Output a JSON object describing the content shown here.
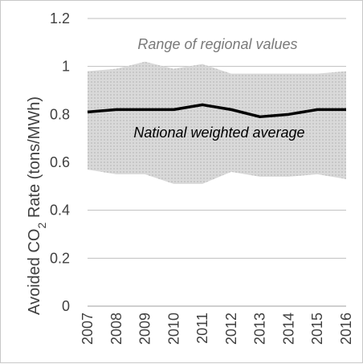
{
  "chart_data": {
    "type": "area",
    "title": "",
    "xlabel": "",
    "ylabel": {
      "prefix": "Avoided CO",
      "subscript": "2",
      "suffix": " Rate (tons/MWh)"
    },
    "x": [
      "2007",
      "2008",
      "2009",
      "2010",
      "2011",
      "2012",
      "2013",
      "2014",
      "2015",
      "2016"
    ],
    "ylim": [
      0,
      1.2
    ],
    "yticks": [
      "0",
      "0.2",
      "0.4",
      "0.6",
      "0.8",
      "1",
      "1.2"
    ],
    "ytick_values": [
      0,
      0.2,
      0.4,
      0.6,
      0.8,
      1.0,
      1.2
    ],
    "grid": true,
    "series": [
      {
        "name": "Range of regional values",
        "kind": "band",
        "lower": [
          0.57,
          0.55,
          0.55,
          0.51,
          0.51,
          0.56,
          0.54,
          0.54,
          0.55,
          0.53
        ],
        "upper": [
          0.98,
          0.99,
          1.02,
          0.99,
          1.01,
          0.97,
          0.97,
          0.97,
          0.97,
          0.98
        ],
        "color": "#d9d9d9"
      },
      {
        "name": "National weighted average",
        "kind": "line",
        "values": [
          0.81,
          0.82,
          0.82,
          0.82,
          0.84,
          0.82,
          0.79,
          0.8,
          0.82,
          0.82
        ],
        "color": "#000000"
      }
    ],
    "annotations": {
      "range": "Range of regional values",
      "average": "National weighted average"
    },
    "colors": {
      "band_fill": "#d9d9d9",
      "band_hatch": "#9a9a9a",
      "grid": "#bfbfbf",
      "axis": "#bfbfbf",
      "text": "#404040"
    }
  }
}
